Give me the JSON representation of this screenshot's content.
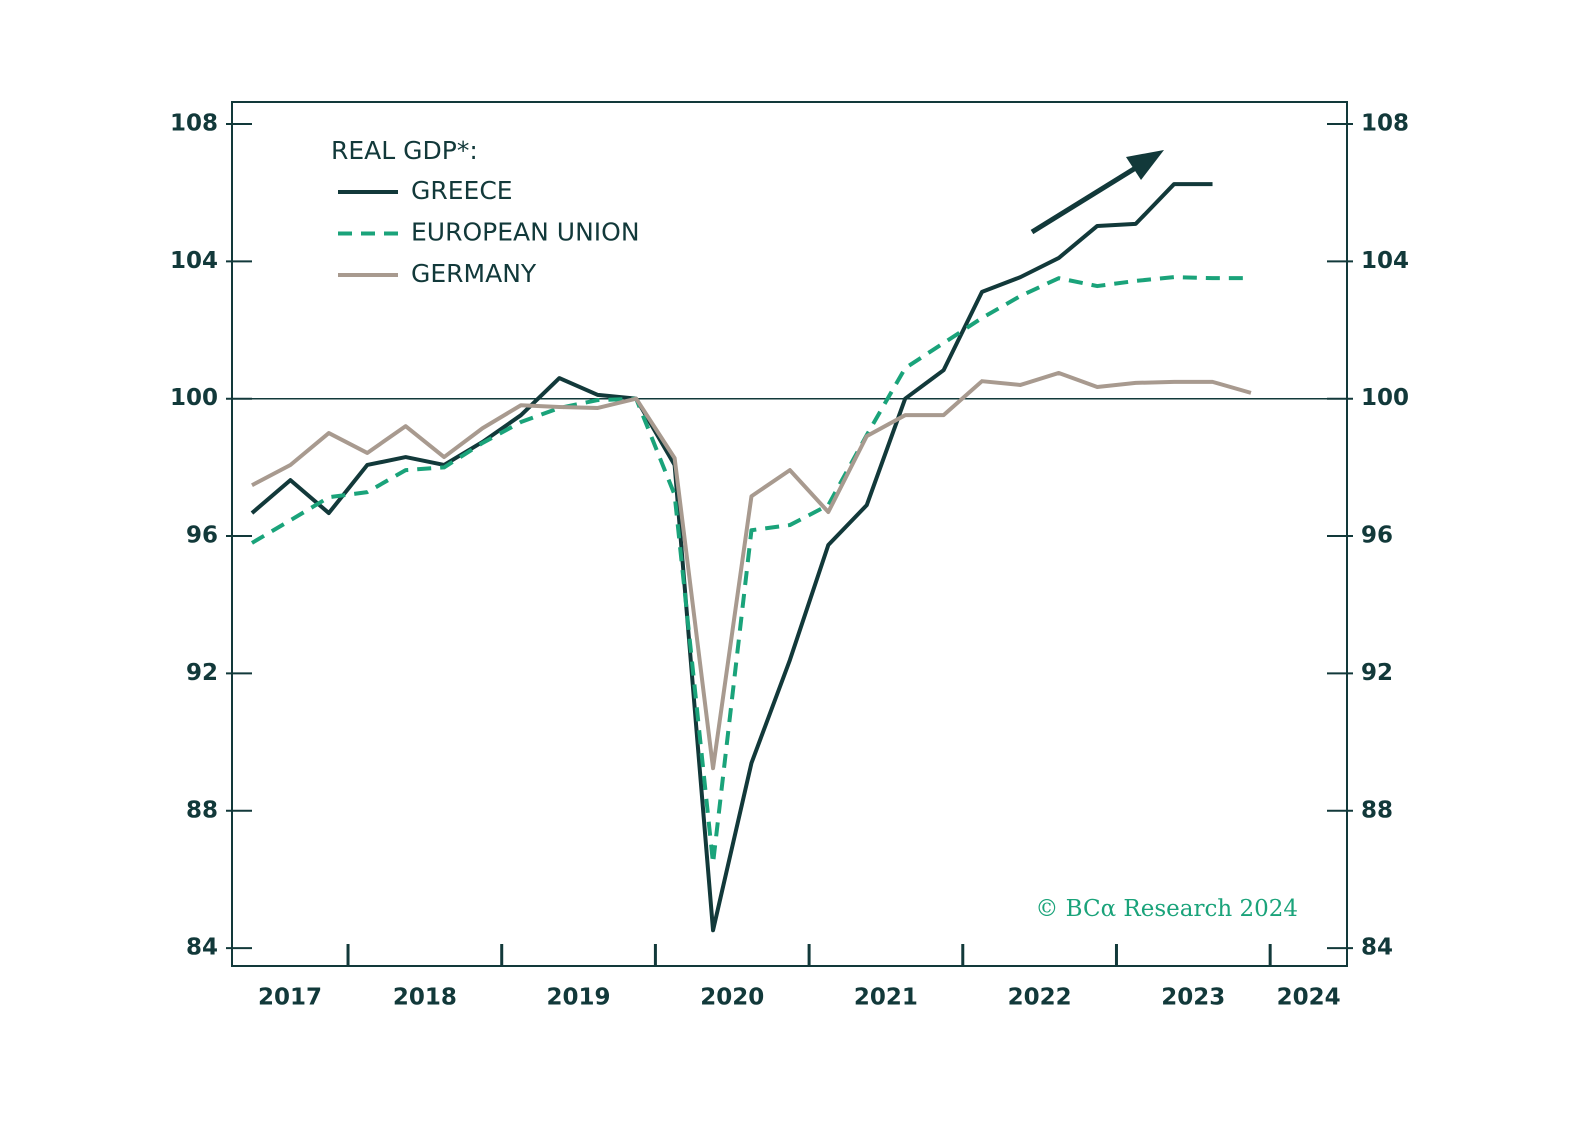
{
  "chart_data": {
    "type": "line",
    "legend_title": "REAL GDP*:",
    "source": "© BCα Research 2024",
    "x": [
      2017.375,
      2017.625,
      2017.875,
      2018.125,
      2018.375,
      2018.625,
      2018.875,
      2019.125,
      2019.375,
      2019.625,
      2019.875,
      2020.125,
      2020.375,
      2020.625,
      2020.875,
      2021.125,
      2021.375,
      2021.625,
      2021.875,
      2022.125,
      2022.375,
      2022.625,
      2022.875,
      2023.125,
      2023.375,
      2023.625,
      2023.875
    ],
    "series": [
      {
        "name": "GREECE",
        "color": "#12393a",
        "dash": false,
        "values": [
          96.67,
          97.63,
          96.67,
          98.07,
          98.3,
          98.07,
          98.74,
          99.52,
          100.6,
          100.11,
          100,
          98.07,
          84.52,
          89.39,
          92.39,
          95.74,
          96.9,
          100,
          100.83,
          103.11,
          103.54,
          104.1,
          105.03,
          105.09,
          106.25,
          106.25,
          null
        ]
      },
      {
        "name": "EUROPEAN UNION",
        "color": "#1aa37a",
        "dash": true,
        "values": [
          95.8,
          96.46,
          97.13,
          97.28,
          97.92,
          98.0,
          98.71,
          99.32,
          99.73,
          99.96,
          100,
          97.2,
          86.47,
          96.17,
          96.32,
          96.9,
          98.94,
          100.89,
          101.62,
          102.35,
          102.99,
          103.51,
          103.28,
          103.43,
          103.54,
          103.51,
          103.51
        ]
      },
      {
        "name": "GERMANY",
        "color": "#a89a8f",
        "dash": false,
        "values": [
          97.48,
          98.07,
          99.0,
          98.42,
          99.2,
          98.3,
          99.14,
          99.81,
          99.76,
          99.73,
          100,
          98.27,
          89.24,
          97.16,
          97.92,
          96.7,
          98.91,
          99.52,
          99.52,
          100.51,
          100.4,
          100.75,
          100.34,
          100.46,
          100.49,
          100.49,
          100.17
        ]
      }
    ],
    "xlim": [
      2017.245,
      2024.5
    ],
    "xticks": [
      2018,
      2019,
      2020,
      2021,
      2022,
      2023,
      2024
    ],
    "year_labels": [
      "2017",
      "2018",
      "2019",
      "2020",
      "2021",
      "2022",
      "2023",
      "2024"
    ],
    "ylim": [
      83.48,
      108.64
    ],
    "yticks": [
      84,
      88,
      92,
      96,
      100,
      104,
      108
    ],
    "y2lim": [
      83.48,
      108.64
    ],
    "y2ticks": [
      84,
      88,
      92,
      96,
      100,
      104,
      108
    ],
    "reference_line": 100
  }
}
